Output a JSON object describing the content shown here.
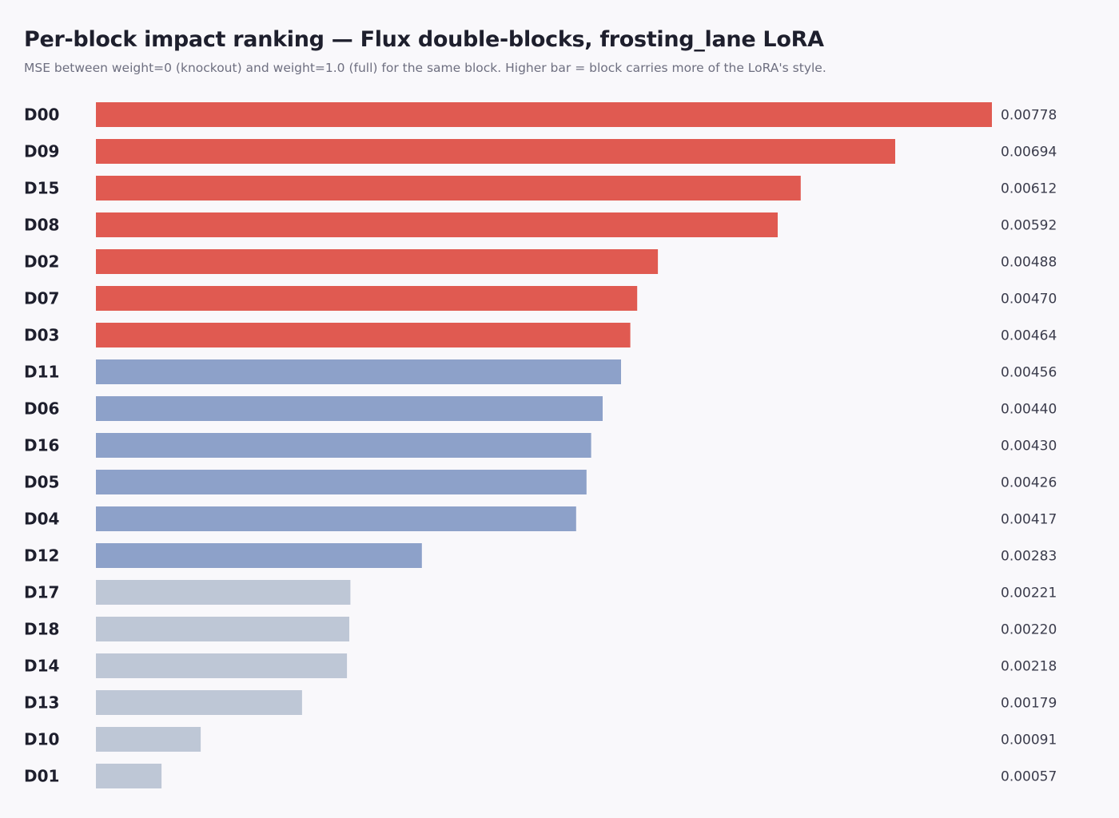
{
  "chart_data": {
    "type": "bar",
    "orientation": "horizontal",
    "title": "Per-block impact ranking — Flux double-blocks, frosting_lane LoRA",
    "subtitle": "MSE between weight=0 (knockout) and weight=1.0 (full) for the same block. Higher bar = block carries more of the LoRA's style.",
    "categories": [
      "D00",
      "D09",
      "D15",
      "D08",
      "D02",
      "D07",
      "D03",
      "D11",
      "D06",
      "D16",
      "D05",
      "D04",
      "D12",
      "D17",
      "D18",
      "D14",
      "D13",
      "D10",
      "D01"
    ],
    "values": [
      0.00778,
      0.00694,
      0.00612,
      0.00592,
      0.00488,
      0.0047,
      0.00464,
      0.00456,
      0.0044,
      0.0043,
      0.00426,
      0.00417,
      0.00283,
      0.00221,
      0.0022,
      0.00218,
      0.00179,
      0.00091,
      0.00057
    ],
    "value_labels": [
      "0.00778",
      "0.00694",
      "0.00612",
      "0.00592",
      "0.00488",
      "0.00470",
      "0.00464",
      "0.00456",
      "0.00440",
      "0.00430",
      "0.00426",
      "0.00417",
      "0.00283",
      "0.00221",
      "0.00220",
      "0.00218",
      "0.00179",
      "0.00091",
      "0.00057"
    ],
    "tiers": [
      "high",
      "high",
      "high",
      "high",
      "high",
      "high",
      "high",
      "mid",
      "mid",
      "mid",
      "mid",
      "mid",
      "mid",
      "low",
      "low",
      "low",
      "low",
      "low",
      "low"
    ],
    "tier_colors": {
      "high": "#e05a51",
      "mid": "#8da1c9",
      "low": "#bec7d6"
    },
    "xlim": [
      0,
      0.00778
    ],
    "grid": false,
    "legend": "none"
  }
}
